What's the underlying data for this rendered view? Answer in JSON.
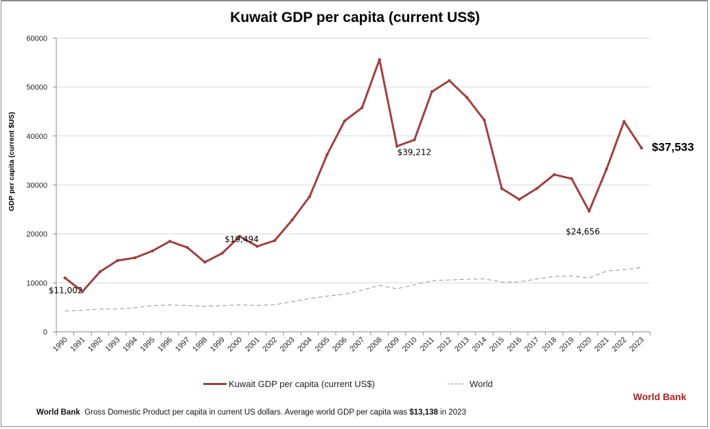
{
  "chart_data": {
    "type": "line",
    "title": "Kuwait GDP per capita (current US$)",
    "ylabel": "GDP per capita (current $US)",
    "xlabel": "",
    "ylim": [
      0,
      60000
    ],
    "yticks": [
      "0",
      "10000",
      "20000",
      "30000",
      "40000",
      "50000",
      "60000"
    ],
    "grid": true,
    "legend_position": "bottom",
    "categories": [
      "1990",
      "1991",
      "1992",
      "1993",
      "1994",
      "1995",
      "1996",
      "1997",
      "1998",
      "1999",
      "2000",
      "2001",
      "2002",
      "2003",
      "2004",
      "2005",
      "2006",
      "2007",
      "2008",
      "2009",
      "2010",
      "2011",
      "2012",
      "2013",
      "2014",
      "2015",
      "2016",
      "2017",
      "2018",
      "2019",
      "2020",
      "2021",
      "2022",
      "2023"
    ],
    "series": [
      {
        "name": "Kuwait GDP per capita (current US$)",
        "color": "#a0403d",
        "style": "solid-markers",
        "values": [
          11002,
          8240,
          12270,
          14560,
          15120,
          16520,
          18490,
          17220,
          14230,
          16060,
          19494,
          17460,
          18630,
          22840,
          27610,
          36180,
          43060,
          45770,
          55600,
          37910,
          39212,
          49050,
          51300,
          47870,
          43240,
          29260,
          27050,
          29260,
          32110,
          31270,
          24656,
          33270,
          42960,
          37533
        ]
      },
      {
        "name": "World",
        "color": "#909090",
        "style": "dashed",
        "values": [
          4270,
          4400,
          4650,
          4700,
          4930,
          5350,
          5500,
          5380,
          5230,
          5350,
          5500,
          5390,
          5550,
          6150,
          6800,
          7300,
          7700,
          8500,
          9500,
          8800,
          9600,
          10440,
          10600,
          10750,
          10820,
          10170,
          10200,
          10800,
          11290,
          11400,
          11010,
          12410,
          12700,
          13138
        ]
      }
    ],
    "annotations": [
      {
        "year": "1990",
        "text": "$11,002"
      },
      {
        "year": "2000",
        "text": "$19,494"
      },
      {
        "year": "2010",
        "text": "$39,212"
      },
      {
        "year": "2020",
        "text": "$24,656"
      },
      {
        "year": "2023",
        "text": "$37,533",
        "emphasis": true
      }
    ]
  },
  "source_badge": "World Bank",
  "footer": {
    "source": "World Bank",
    "text": "Gross Domestic Product per capita in current US dollars.  Average world GDP per capita was ",
    "highlight": "$13,138",
    "suffix": " in 2023"
  }
}
